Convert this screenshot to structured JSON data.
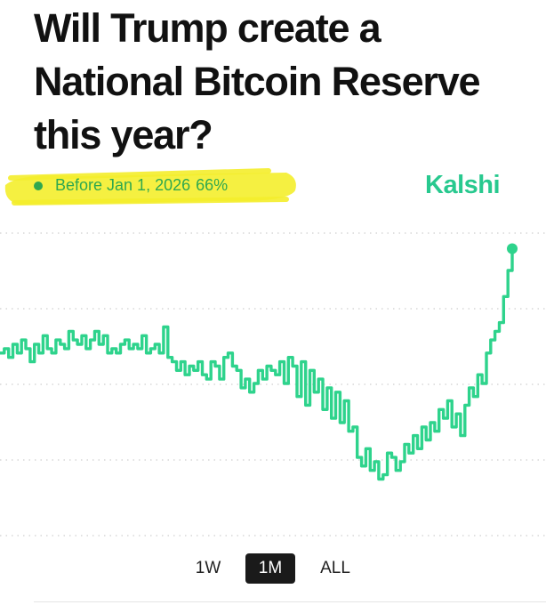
{
  "question": {
    "lines": [
      "Will Trump create a",
      "National Bitcoin Reserve",
      "this year?"
    ]
  },
  "market": {
    "outcome_label": "Before Jan 1, 2026",
    "probability": "66%",
    "brand": "Kalshi"
  },
  "colors": {
    "line": "#2ed38c",
    "legend": "#2fa84f",
    "brand": "#28c98f",
    "highlight": "#f4ee2c"
  },
  "time_ranges": [
    {
      "label": "1W",
      "active": false
    },
    {
      "label": "1M",
      "active": true
    },
    {
      "label": "ALL",
      "active": false
    }
  ],
  "chart_data": {
    "type": "line",
    "title": "",
    "xlabel": "",
    "ylabel": "",
    "grid": "horizontal-dotted",
    "ylim": [
      0,
      70
    ],
    "x": [
      0,
      1,
      2,
      3,
      4,
      5,
      6,
      7,
      8,
      9,
      10,
      11,
      12,
      13,
      14,
      15,
      16,
      17,
      18,
      19,
      20,
      21,
      22,
      23,
      24,
      25,
      26,
      27,
      28,
      29,
      30,
      31,
      32,
      33,
      34,
      35,
      36,
      37,
      38,
      39,
      40,
      41,
      42,
      43,
      44,
      45,
      46,
      47,
      48,
      49,
      50,
      51,
      52,
      53,
      54,
      55,
      56,
      57,
      58,
      59,
      60,
      61,
      62,
      63,
      64,
      65,
      66,
      67,
      68,
      69,
      70,
      71,
      72,
      73,
      74,
      75,
      76,
      77,
      78,
      79,
      80,
      81,
      82,
      83,
      84,
      85,
      86,
      87,
      88,
      89,
      90,
      91,
      92,
      93,
      94,
      95,
      96,
      97,
      98,
      99,
      100,
      101,
      102,
      103,
      104,
      105,
      106,
      107,
      108,
      109,
      110,
      111,
      112,
      113,
      114,
      115,
      116,
      117,
      118,
      119
    ],
    "series": [
      {
        "values": [
          42,
          43,
          41,
          44,
          42,
          45,
          43,
          40,
          44,
          42,
          46,
          43,
          42,
          45,
          44,
          43,
          47,
          45,
          44,
          46,
          43,
          45,
          47,
          44,
          46,
          42,
          43,
          42,
          44,
          45,
          43,
          44,
          43,
          46,
          42,
          43,
          44,
          42,
          48,
          41,
          40,
          38,
          40,
          37,
          39,
          38,
          40,
          37,
          36,
          40,
          39,
          36,
          41,
          42,
          39,
          38,
          34,
          36,
          33,
          35,
          38,
          36,
          39,
          38,
          37,
          40,
          35,
          41,
          39,
          32,
          40,
          30,
          38,
          33,
          36,
          29,
          34,
          27,
          33,
          26,
          31,
          24,
          25,
          18,
          16,
          20,
          15,
          17,
          13,
          14,
          19,
          18,
          15,
          17,
          21,
          19,
          23,
          20,
          25,
          22,
          26,
          24,
          29,
          27,
          31,
          25,
          28,
          23,
          30,
          34,
          32,
          37,
          35,
          42,
          45,
          47,
          49,
          55,
          61,
          66
        ]
      }
    ]
  }
}
